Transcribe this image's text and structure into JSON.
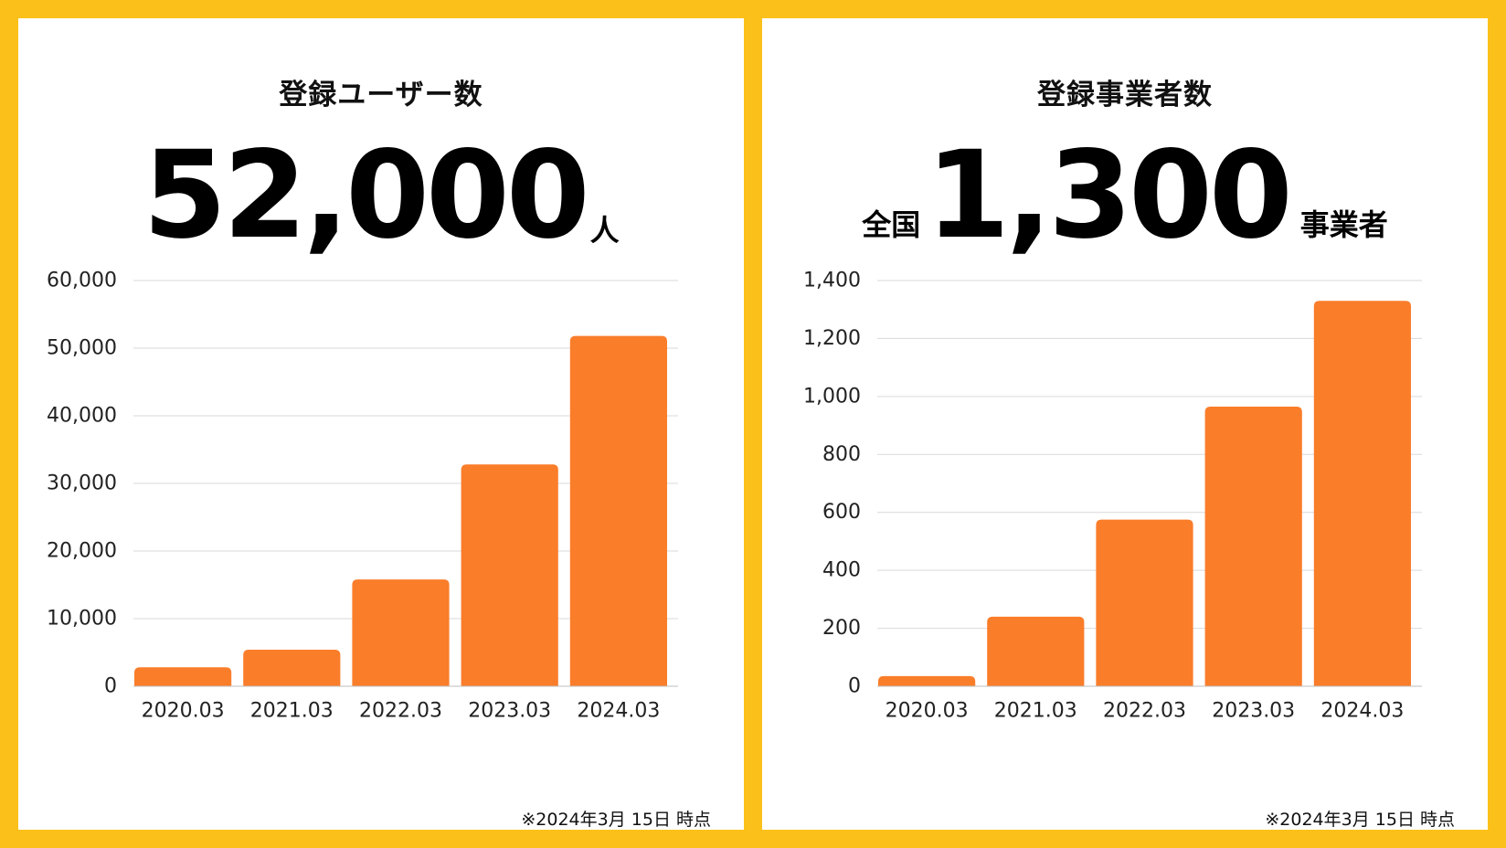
{
  "colors": {
    "background": "#FCC01A",
    "panel": "#FFFFFF",
    "bar": "#FA7D2A",
    "grid": "#D9D9D9"
  },
  "left": {
    "title": "登録ユーザー数",
    "headline_number": "52,000",
    "headline_unit": "人",
    "footnote": "※2024年3月 15日 時点"
  },
  "right": {
    "title": "登録事業者数",
    "headline_prefix": "全国",
    "headline_number": "1,300",
    "headline_unit": "事業者",
    "footnote": "※2024年3月 15日 時点"
  },
  "chart_data": [
    {
      "type": "bar",
      "categories": [
        "2020.03",
        "2021.03",
        "2022.03",
        "2023.03",
        "2024.03"
      ],
      "values": [
        2800,
        5400,
        15800,
        32800,
        51800
      ],
      "ylim": [
        0,
        60000
      ],
      "yticks": [
        0,
        10000,
        20000,
        30000,
        40000,
        50000,
        60000
      ],
      "ytick_labels": [
        "0",
        "10,000",
        "20,000",
        "30,000",
        "40,000",
        "50,000",
        "60,000"
      ],
      "grid": true,
      "color": "#FA7D2A"
    },
    {
      "type": "bar",
      "categories": [
        "2020.03",
        "2021.03",
        "2022.03",
        "2023.03",
        "2024.03"
      ],
      "values": [
        35,
        240,
        575,
        965,
        1330
      ],
      "ylim": [
        0,
        1400
      ],
      "yticks": [
        0,
        200,
        400,
        600,
        800,
        1000,
        1200,
        1400
      ],
      "ytick_labels": [
        "0",
        "200",
        "400",
        "600",
        "800",
        "1,000",
        "1,200",
        "1,400"
      ],
      "grid": true,
      "color": "#FA7D2A"
    }
  ]
}
